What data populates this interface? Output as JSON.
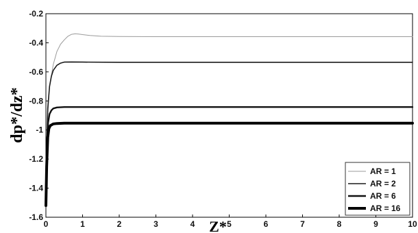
{
  "chart_data": {
    "type": "line",
    "title": "",
    "xlabel": "Z*",
    "ylabel": "dp*/dz*",
    "xlim": [
      0,
      10
    ],
    "ylim": [
      -1.6,
      -0.2
    ],
    "x_ticks": [
      "0",
      "1",
      "2",
      "3",
      "4",
      "5",
      "6",
      "7",
      "8",
      "9",
      "10"
    ],
    "y_ticks": [
      "-0.2",
      "-0.4",
      "-0.6",
      "-0.8",
      "-1",
      "-1.2",
      "-1.4",
      "-1.6"
    ],
    "grid": false,
    "legend_position": "bottom-right",
    "series": [
      {
        "name": "AR = 1",
        "color": "#9a9a9a",
        "points": [
          [
            0,
            -1.36
          ],
          [
            0.05,
            -0.9
          ],
          [
            0.1,
            -0.7
          ],
          [
            0.2,
            -0.55
          ],
          [
            0.3,
            -0.46
          ],
          [
            0.4,
            -0.41
          ],
          [
            0.5,
            -0.38
          ],
          [
            0.6,
            -0.355
          ],
          [
            0.7,
            -0.342
          ],
          [
            0.8,
            -0.338
          ],
          [
            0.9,
            -0.34
          ],
          [
            1.0,
            -0.344
          ],
          [
            1.2,
            -0.35
          ],
          [
            1.5,
            -0.355
          ],
          [
            2,
            -0.357
          ],
          [
            3,
            -0.358
          ],
          [
            5,
            -0.358
          ],
          [
            10,
            -0.358
          ]
        ]
      },
      {
        "name": "AR = 2",
        "color": "#1a1a1a",
        "points": [
          [
            0,
            -1.35
          ],
          [
            0.05,
            -0.85
          ],
          [
            0.1,
            -0.7
          ],
          [
            0.15,
            -0.63
          ],
          [
            0.2,
            -0.59
          ],
          [
            0.3,
            -0.555
          ],
          [
            0.4,
            -0.54
          ],
          [
            0.5,
            -0.533
          ],
          [
            0.7,
            -0.532
          ],
          [
            1,
            -0.533
          ],
          [
            2,
            -0.534
          ],
          [
            5,
            -0.534
          ],
          [
            10,
            -0.534
          ]
        ]
      },
      {
        "name": "AR = 6",
        "color": "#111111",
        "points": [
          [
            0,
            -1.45
          ],
          [
            0.03,
            -1.1
          ],
          [
            0.06,
            -0.95
          ],
          [
            0.1,
            -0.89
          ],
          [
            0.15,
            -0.865
          ],
          [
            0.2,
            -0.852
          ],
          [
            0.3,
            -0.845
          ],
          [
            0.5,
            -0.842
          ],
          [
            1,
            -0.842
          ],
          [
            5,
            -0.842
          ],
          [
            10,
            -0.842
          ]
        ]
      },
      {
        "name": "AR = 16",
        "color": "#000000",
        "points": [
          [
            0,
            -1.52
          ],
          [
            0.02,
            -1.25
          ],
          [
            0.05,
            -1.05
          ],
          [
            0.08,
            -0.99
          ],
          [
            0.12,
            -0.97
          ],
          [
            0.2,
            -0.958
          ],
          [
            0.3,
            -0.955
          ],
          [
            0.5,
            -0.953
          ],
          [
            1,
            -0.953
          ],
          [
            5,
            -0.953
          ],
          [
            10,
            -0.953
          ]
        ]
      }
    ],
    "line_widths": [
      1,
      1.6,
      2.4,
      4
    ]
  }
}
